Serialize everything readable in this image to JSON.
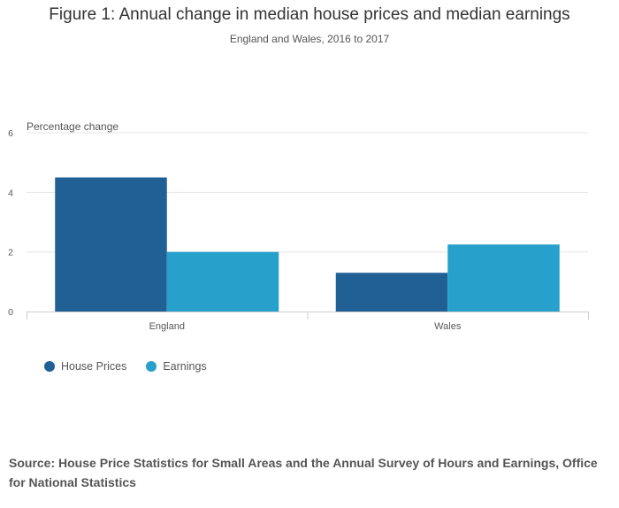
{
  "title": "Figure 1: Annual change in median house prices and median earnings",
  "subtitle": "England and Wales, 2016 to 2017",
  "source": "Source: House Price Statistics for Small Areas and the Annual Survey of Hours and Earnings, Office for National Statistics",
  "chart_data": {
    "type": "bar",
    "categories": [
      "England",
      "Wales"
    ],
    "series": [
      {
        "name": "House Prices",
        "values": [
          4.5,
          1.3
        ],
        "color": "#206095"
      },
      {
        "name": "Earnings",
        "values": [
          2.0,
          2.25
        ],
        "color": "#27a0cc"
      }
    ],
    "ylabel": "Percentage change",
    "ylim": [
      0,
      6
    ],
    "yticks": [
      0,
      2,
      4,
      6
    ],
    "grid": true,
    "legend_position": "bottom-left"
  }
}
